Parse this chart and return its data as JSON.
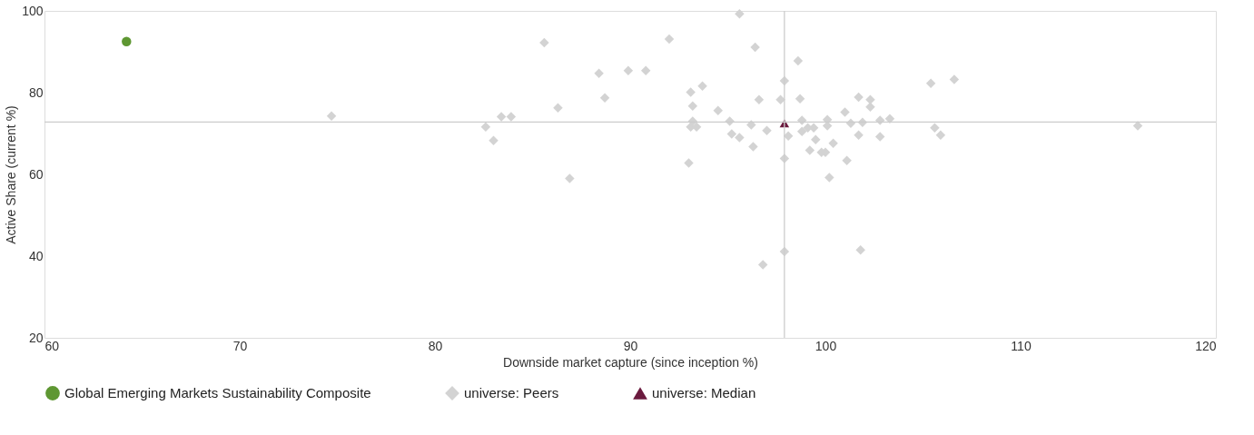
{
  "chart_data": {
    "type": "scatter",
    "xlabel": "Downside market capture (since inception %)",
    "ylabel": "Active Share (current %)",
    "xlim": [
      60,
      120
    ],
    "xticks": [
      60,
      70,
      80,
      90,
      100,
      110,
      120
    ],
    "ylim": [
      20,
      100
    ],
    "yticks": [
      20,
      40,
      60,
      80,
      100
    ],
    "grid": false,
    "legend": "bottom",
    "ref_lines": [
      {
        "axis": "x",
        "value": 97.9,
        "color": "#cccccc"
      },
      {
        "axis": "y",
        "value": 72.8,
        "color": "#cccccc"
      }
    ],
    "series": [
      {
        "name": "Global Emerging Markets Sustainability Composite",
        "color": "#5e9732",
        "marker": "circle",
        "x": [
          64.2
        ],
        "values": [
          92.5
        ]
      },
      {
        "name": "universe: Peers",
        "color": "#d3d3d3",
        "marker": "diamond",
        "x": [
          74.7,
          82.6,
          83.0,
          83.4,
          83.9,
          85.6,
          86.3,
          86.9,
          88.4,
          88.7,
          89.9,
          90.8,
          92.0,
          95.6,
          96.4,
          98.6,
          93.7,
          93.1,
          97.9,
          96.6,
          97.7,
          98.7,
          101.7,
          102.3,
          102.3,
          105.4,
          106.6,
          93.2,
          94.5,
          101.0,
          95.1,
          93.2,
          93.1,
          93.4,
          96.2,
          98.8,
          100.1,
          100.1,
          101.3,
          101.9,
          102.8,
          103.3,
          105.6,
          105.9,
          95.2,
          95.6,
          97.0,
          98.1,
          98.8,
          99.1,
          99.4,
          99.5,
          100.4,
          101.7,
          102.8,
          96.3,
          99.2,
          99.8,
          100.0,
          97.9,
          101.1,
          93.0,
          100.2,
          97.9,
          101.8,
          96.8,
          116.0
        ],
        "values": [
          74.3,
          71.6,
          68.3,
          74.1,
          74.1,
          92.2,
          76.3,
          59.0,
          84.7,
          78.7,
          85.4,
          85.4,
          93.1,
          99.3,
          91.1,
          87.8,
          81.6,
          80.1,
          82.9,
          78.3,
          78.3,
          78.5,
          78.9,
          78.3,
          76.5,
          82.3,
          83.2,
          76.7,
          75.6,
          75.2,
          73.0,
          73.0,
          71.6,
          71.6,
          72.1,
          73.2,
          73.4,
          71.9,
          72.5,
          72.7,
          73.2,
          73.6,
          71.4,
          69.6,
          69.9,
          69.0,
          70.7,
          69.4,
          70.5,
          71.4,
          71.4,
          68.5,
          67.6,
          69.6,
          69.2,
          66.8,
          65.9,
          65.4,
          65.4,
          63.9,
          63.4,
          62.8,
          59.2,
          41.1,
          41.5,
          37.9,
          71.9
        ]
      },
      {
        "name": "universe: Median",
        "color": "#6b1a3e",
        "marker": "triangle",
        "x": [
          97.9
        ],
        "values": [
          72.5
        ]
      }
    ]
  }
}
